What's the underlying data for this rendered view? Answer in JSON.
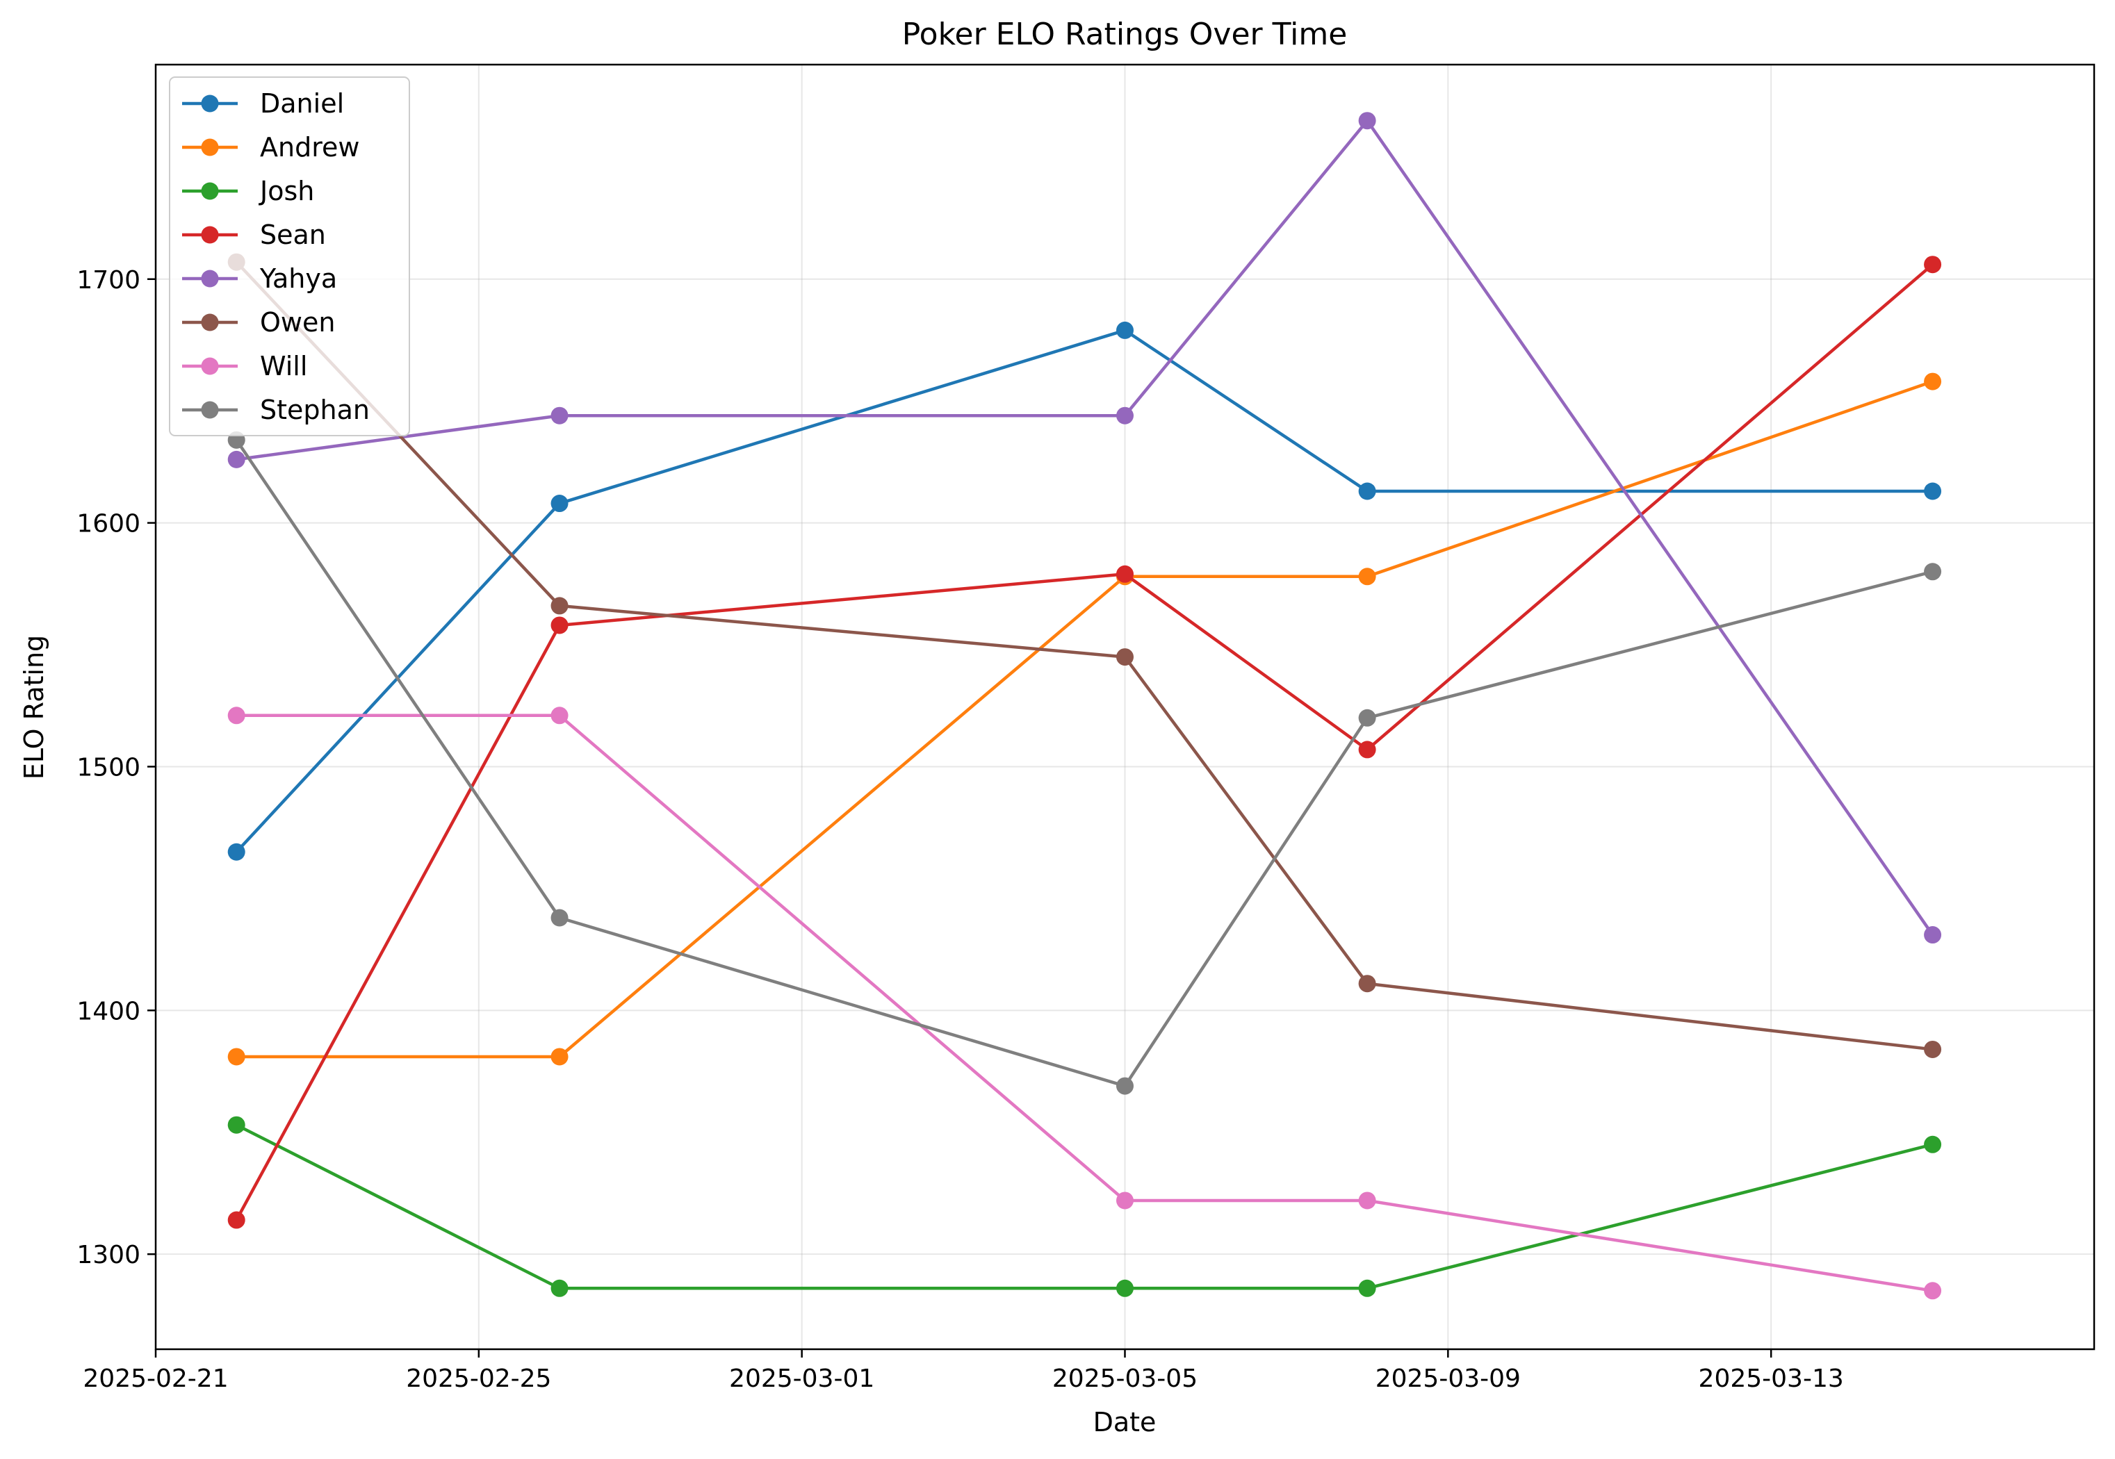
{
  "chart_data": {
    "type": "line",
    "title": "Poker ELO Ratings Over Time",
    "xlabel": "Date",
    "ylabel": "ELO Rating",
    "xlim": [
      "2025-02-21",
      "2025-03-17"
    ],
    "ylim": [
      1261,
      1788
    ],
    "x_ticks": [
      "2025-02-21",
      "2025-02-25",
      "2025-03-01",
      "2025-03-05",
      "2025-03-09",
      "2025-03-13"
    ],
    "y_ticks": [
      1300,
      1400,
      1500,
      1600,
      1700
    ],
    "grid": true,
    "legend_position": "top-left",
    "x": [
      "2025-02-22",
      "2025-02-26",
      "2025-03-05",
      "2025-03-08",
      "2025-03-15"
    ],
    "series": [
      {
        "name": "Daniel",
        "color": "#1f77b4",
        "values": [
          1465,
          1608,
          1679,
          1613,
          1613
        ]
      },
      {
        "name": "Andrew",
        "color": "#ff7f0e",
        "values": [
          1381,
          1381,
          1578,
          1578,
          1658
        ]
      },
      {
        "name": "Josh",
        "color": "#2ca02c",
        "values": [
          1353,
          1286,
          1286,
          1286,
          1345
        ]
      },
      {
        "name": "Sean",
        "color": "#d62728",
        "values": [
          1314,
          1558,
          1579,
          1507,
          1706
        ]
      },
      {
        "name": "Yahya",
        "color": "#9467bd",
        "values": [
          1626,
          1644,
          1644,
          1765,
          1431
        ]
      },
      {
        "name": "Owen",
        "color": "#8c564b",
        "values": [
          1707,
          1566,
          1545,
          1411,
          1384
        ]
      },
      {
        "name": "Will",
        "color": "#e377c2",
        "values": [
          1521,
          1521,
          1322,
          1322,
          1285
        ]
      },
      {
        "name": "Stephan",
        "color": "#7f7f7f",
        "values": [
          1634,
          1438,
          1369,
          1520,
          1580
        ]
      }
    ]
  }
}
